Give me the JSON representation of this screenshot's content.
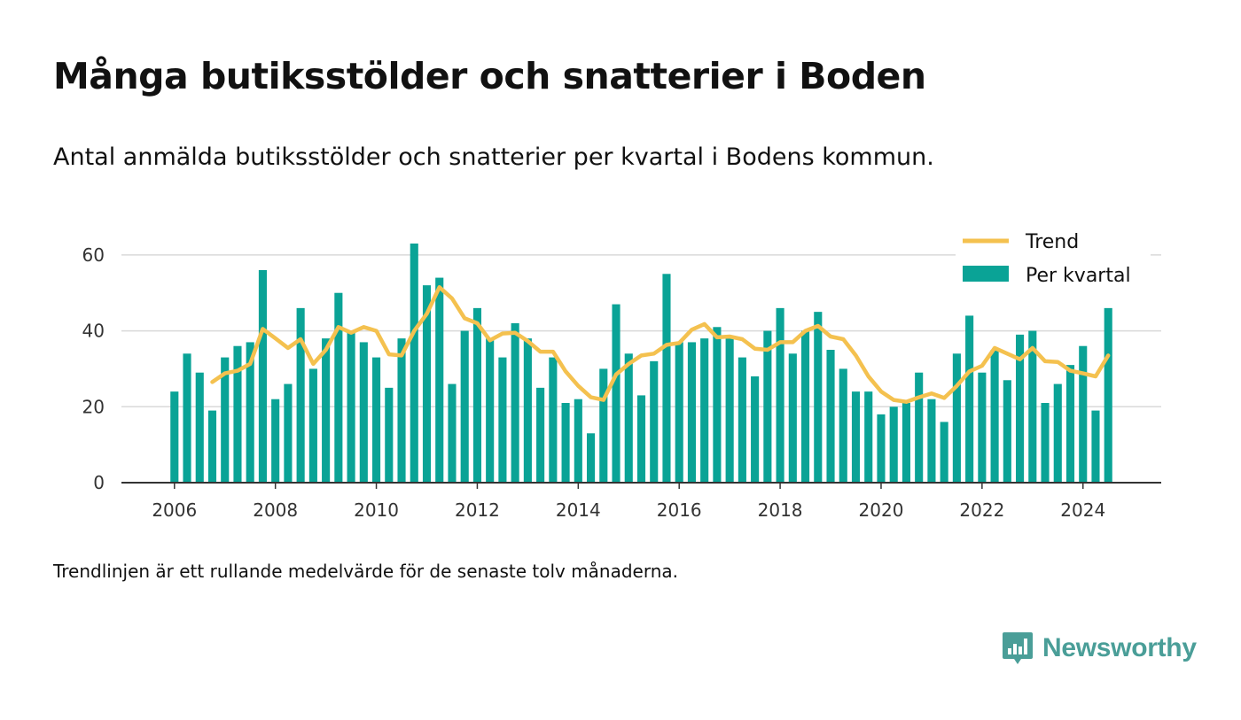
{
  "title": "Många butiksstölder och snatterier i Boden",
  "subtitle": "Antal anmälda butiksstölder och snatterier per kvartal i Bodens kommun.",
  "footnote": "Trendlinjen är ett rullande medelvärde för de senaste tolv månaderna.",
  "logo": {
    "text": "Newsworthy",
    "icon": "newsworthy-logo-icon"
  },
  "colors": {
    "bars": "#0aa396",
    "trend": "#f4c14f",
    "grid": "#d9d9d9",
    "axis": "#333333",
    "logo": "#4a9e98"
  },
  "chart_data": {
    "type": "bar",
    "x_start": 2006.0,
    "x_step": 0.25,
    "xlim": [
      2004.95,
      2025.55
    ],
    "ylim": [
      0,
      70
    ],
    "x_ticks": [
      "2006",
      "2008",
      "2010",
      "2012",
      "2014",
      "2016",
      "2018",
      "2020",
      "2022",
      "2024"
    ],
    "y_ticks": [
      "0",
      "20",
      "40",
      "60"
    ],
    "grid": true,
    "legend_position": "top-right",
    "series": [
      {
        "name": "Per kvartal",
        "type": "bar",
        "values": [
          24,
          34,
          29,
          19,
          33,
          36,
          37,
          56,
          22,
          26,
          46,
          30,
          38,
          50,
          40,
          37,
          33,
          25,
          38,
          63,
          52,
          54,
          26,
          40,
          46,
          38,
          33,
          42,
          38,
          25,
          33,
          21,
          22,
          13,
          30,
          47,
          34,
          23,
          32,
          55,
          37,
          37,
          38,
          41,
          38,
          33,
          28,
          40,
          46,
          34,
          40,
          45,
          35,
          30,
          24,
          24,
          18,
          20,
          21,
          29,
          22,
          16,
          34,
          44,
          29,
          35,
          27,
          39,
          40,
          21,
          26,
          31,
          36,
          19,
          46
        ]
      },
      {
        "name": "Trend",
        "type": "line",
        "x_start": 2006.75,
        "values": [
          26.5,
          28.8,
          29.5,
          31.3,
          40.5,
          38,
          35.5,
          37.8,
          31.3,
          35,
          41,
          39.5,
          41,
          40,
          33.8,
          33.5,
          40,
          44.5,
          51.5,
          48.5,
          43.3,
          42,
          37.5,
          39.3,
          39.5,
          37.3,
          34.5,
          34.5,
          29.3,
          25.5,
          22.5,
          21.8,
          28.5,
          31.3,
          33.5,
          34,
          36.3,
          36.8,
          40.3,
          41.8,
          38.3,
          38.5,
          37.8,
          35.3,
          35,
          37,
          37,
          40,
          41.3,
          38.5,
          37.8,
          33.5,
          28,
          24,
          21.8,
          21.3,
          22.5,
          23.5,
          22.3,
          25.5,
          29.3,
          30.8,
          35.5,
          34,
          32.5,
          35.5,
          32,
          31.8,
          29.5,
          28.8,
          28,
          33.5
        ]
      }
    ]
  }
}
